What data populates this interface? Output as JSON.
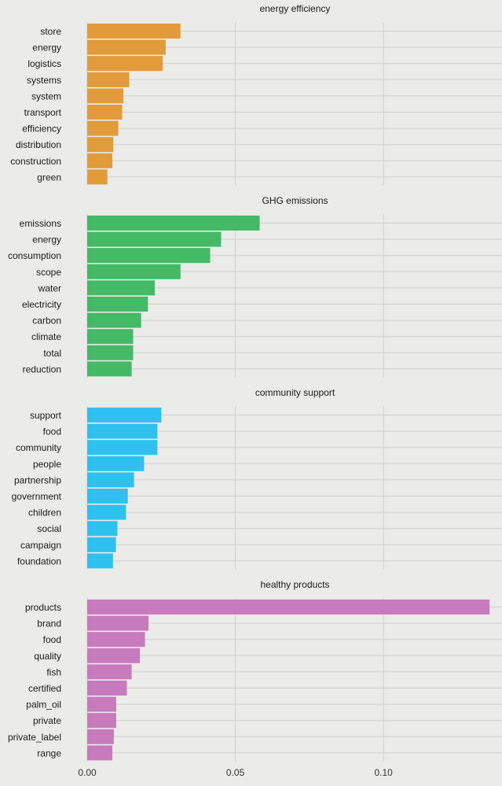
{
  "chart_data": {
    "type": "bar",
    "orientation": "horizontal",
    "xlim": [
      0,
      0.14
    ],
    "x_ticks": [
      0,
      0.05,
      0.1
    ],
    "x_tick_labels": [
      "0.00",
      "0.05",
      "0.10"
    ],
    "grid": true,
    "panels": [
      {
        "title": "energy efficiency",
        "color": "#e29b3a",
        "categories": [
          "store",
          "energy",
          "logistics",
          "systems",
          "system",
          "transport",
          "efficiency",
          "distribution",
          "construction",
          "green"
        ],
        "values": [
          0.0315,
          0.0265,
          0.0255,
          0.0142,
          0.0122,
          0.0118,
          0.0105,
          0.0088,
          0.0085,
          0.0068
        ]
      },
      {
        "title": "GHG emissions",
        "color": "#44b966",
        "categories": [
          "emissions",
          "energy",
          "consumption",
          "scope",
          "water",
          "electricity",
          "carbon",
          "climate",
          "total",
          "reduction"
        ],
        "values": [
          0.0582,
          0.0452,
          0.0415,
          0.0315,
          0.0228,
          0.0205,
          0.0182,
          0.0155,
          0.0155,
          0.015
        ]
      },
      {
        "title": "community support",
        "color": "#2ec1f0",
        "categories": [
          "support",
          "food",
          "community",
          "people",
          "partnership",
          "government",
          "children",
          "social",
          "campaign",
          "foundation"
        ],
        "values": [
          0.025,
          0.0237,
          0.0237,
          0.0192,
          0.0158,
          0.0137,
          0.0131,
          0.0102,
          0.0097,
          0.0087
        ]
      },
      {
        "title": "healthy products",
        "color": "#c77bbd",
        "categories": [
          "products",
          "brand",
          "food",
          "quality",
          "fish",
          "certified",
          "palm_oil",
          "private",
          "private_label",
          "range"
        ],
        "values": [
          0.1358,
          0.0207,
          0.0195,
          0.0178,
          0.015,
          0.0134,
          0.0098,
          0.0098,
          0.009,
          0.0085
        ]
      }
    ]
  }
}
